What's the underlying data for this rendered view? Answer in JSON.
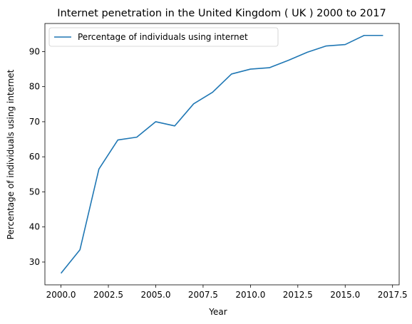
{
  "chart_data": {
    "type": "line",
    "title": "Internet penetration in the United Kingdom ( UK ) 2000 to 2017",
    "xlabel": "Year",
    "ylabel": "Percentage of individuals using internet",
    "xlim": [
      1999.15,
      2017.85
    ],
    "ylim": [
      23.5,
      98
    ],
    "xticks": [
      2000.0,
      2002.5,
      2005.0,
      2007.5,
      2010.0,
      2012.5,
      2015.0,
      2017.5
    ],
    "xtick_labels": [
      "2000.0",
      "2002.5",
      "2005.0",
      "2007.5",
      "2010.0",
      "2012.5",
      "2015.0",
      "2017.5"
    ],
    "yticks": [
      30,
      40,
      50,
      60,
      70,
      80,
      90
    ],
    "ytick_labels": [
      "30",
      "40",
      "50",
      "60",
      "70",
      "80",
      "90"
    ],
    "grid": false,
    "legend_position": "top-left",
    "series": [
      {
        "name": "Percentage of individuals using internet",
        "color": "#1f77b4",
        "x": [
          2000,
          2001,
          2002,
          2003,
          2004,
          2005,
          2006,
          2007,
          2008,
          2009,
          2010,
          2011,
          2012,
          2013,
          2014,
          2015,
          2016,
          2017
        ],
        "y": [
          26.8,
          33.5,
          56.5,
          64.8,
          65.6,
          70.0,
          68.8,
          75.1,
          78.4,
          83.6,
          85.0,
          85.4,
          87.5,
          89.8,
          91.6,
          92.0,
          94.6,
          94.6
        ]
      }
    ]
  }
}
